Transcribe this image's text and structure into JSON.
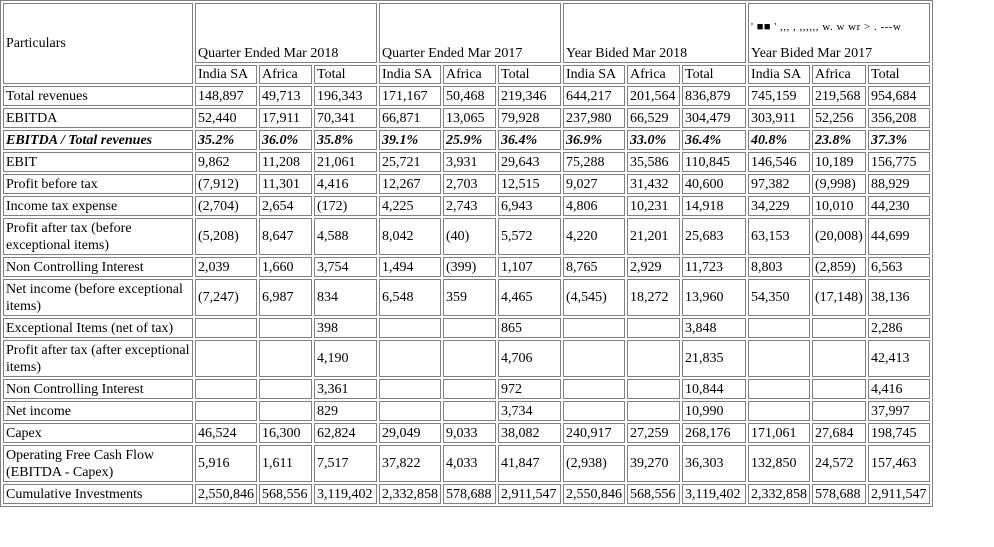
{
  "header": {
    "particulars": "Particulars",
    "periods": [
      "Quarter Ended Mar 2018",
      "Quarter Ended Mar 2017",
      "Year Bided Mar 2018",
      "Year Bided Mar 2017"
    ],
    "subcolumns": [
      "India SA",
      "Africa",
      "Total"
    ],
    "artifact_text": "' ■■ ' ,,, , ,,,,,, w. w wr > . ---w"
  },
  "rows": [
    {
      "label": "Total revenues",
      "values": [
        "148,897",
        "49,713",
        "196,343",
        "171,167",
        "50,468",
        "219,346",
        "644,217",
        "201,564",
        "836,879",
        "745,159",
        "219,568",
        "954,684"
      ]
    },
    {
      "label": "EBITDA",
      "values": [
        "52,440",
        "17,911",
        "70,341",
        "66,871",
        "13,065",
        "79,928",
        "237,980",
        "66,529",
        "304,479",
        "303,911",
        "52,256",
        "356,208"
      ]
    },
    {
      "label": "EBITDA / Total revenues",
      "values": [
        "35.2%",
        "36.0%",
        "35.8%",
        "39.1%",
        "25.9%",
        "36.4%",
        "36.9%",
        "33.0%",
        "36.4%",
        "40.8%",
        "23.8%",
        "37.3%"
      ]
    },
    {
      "label": "EBIT",
      "values": [
        "9,862",
        "11,208",
        "21,061",
        "25,721",
        "3,931",
        "29,643",
        "75,288",
        "35,586",
        "110,845",
        "146,546",
        "10,189",
        "156,775"
      ]
    },
    {
      "label": "Profit before tax",
      "values": [
        "(7,912)",
        "11,301",
        "4,416",
        "12,267",
        "2,703",
        "12,515",
        "9,027",
        "31,432",
        "40,600",
        "97,382",
        "(9,998)",
        "88,929"
      ]
    },
    {
      "label": "Income tax expense",
      "values": [
        "(2,704)",
        "2,654",
        "(172)",
        "4,225",
        "2,743",
        "6,943",
        "4,806",
        "10,231",
        "14,918",
        "34,229",
        "10,010",
        "44,230"
      ]
    },
    {
      "label": "Profit after tax (before exceptional items)",
      "values": [
        "(5,208)",
        "8,647",
        "4,588",
        "8,042",
        "(40)",
        "5,572",
        "4,220",
        "21,201",
        "25,683",
        "63,153",
        "(20,008)",
        "44,699"
      ]
    },
    {
      "label": "Non Controlling Interest",
      "values": [
        "2,039",
        "1,660",
        "3,754",
        "1,494",
        "(399)",
        "1,107",
        "8,765",
        "2,929",
        "11,723",
        "8,803",
        "(2,859)",
        "6,563"
      ]
    },
    {
      "label": "Net income (before exceptional items)",
      "values": [
        "(7,247)",
        "6,987",
        "834",
        "6,548",
        "359",
        "4,465",
        "(4,545)",
        "18,272",
        "13,960",
        "54,350",
        "(17,148)",
        "38,136"
      ]
    },
    {
      "label": "Exceptional Items (net of tax)",
      "values": [
        "",
        "",
        "398",
        "",
        "",
        "865",
        "",
        "",
        "3,848",
        "",
        "",
        "2,286"
      ]
    },
    {
      "label": "Profit after tax (after exceptional items)",
      "values": [
        "",
        "",
        "4,190",
        "",
        "",
        "4,706",
        "",
        "",
        "21,835",
        "",
        "",
        "42,413"
      ]
    },
    {
      "label": "Non Controlling Interest",
      "values": [
        "",
        "",
        "3,361",
        "",
        "",
        "972",
        "",
        "",
        "10,844",
        "",
        "",
        "4,416"
      ]
    },
    {
      "label": "Net income",
      "values": [
        "",
        "",
        "829",
        "",
        "",
        "3,734",
        "",
        "",
        "10,990",
        "",
        "",
        "37,997"
      ]
    },
    {
      "label": "Capex",
      "values": [
        "46,524",
        "16,300",
        "62,824",
        "29,049",
        "9,033",
        "38,082",
        "240,917",
        "27,259",
        "268,176",
        "171,061",
        "27,684",
        "198,745"
      ]
    },
    {
      "label": "Operating Free Cash Flow (EBITDA - Capex)",
      "values": [
        "5,916",
        "1,611",
        "7,517",
        "37,822",
        "4,033",
        "41,847",
        "(2,938)",
        "39,270",
        "36,303",
        "132,850",
        "24,572",
        "157,463"
      ]
    },
    {
      "label": "Cumulative Investments",
      "values": [
        "2,550,846",
        "568,556",
        "3,119,402",
        "2,332,858",
        "578,688",
        "2,911,547",
        "2,550,846",
        "568,556",
        "3,119,402",
        "2,332,858",
        "578,688",
        "2,911,547"
      ]
    }
  ]
}
